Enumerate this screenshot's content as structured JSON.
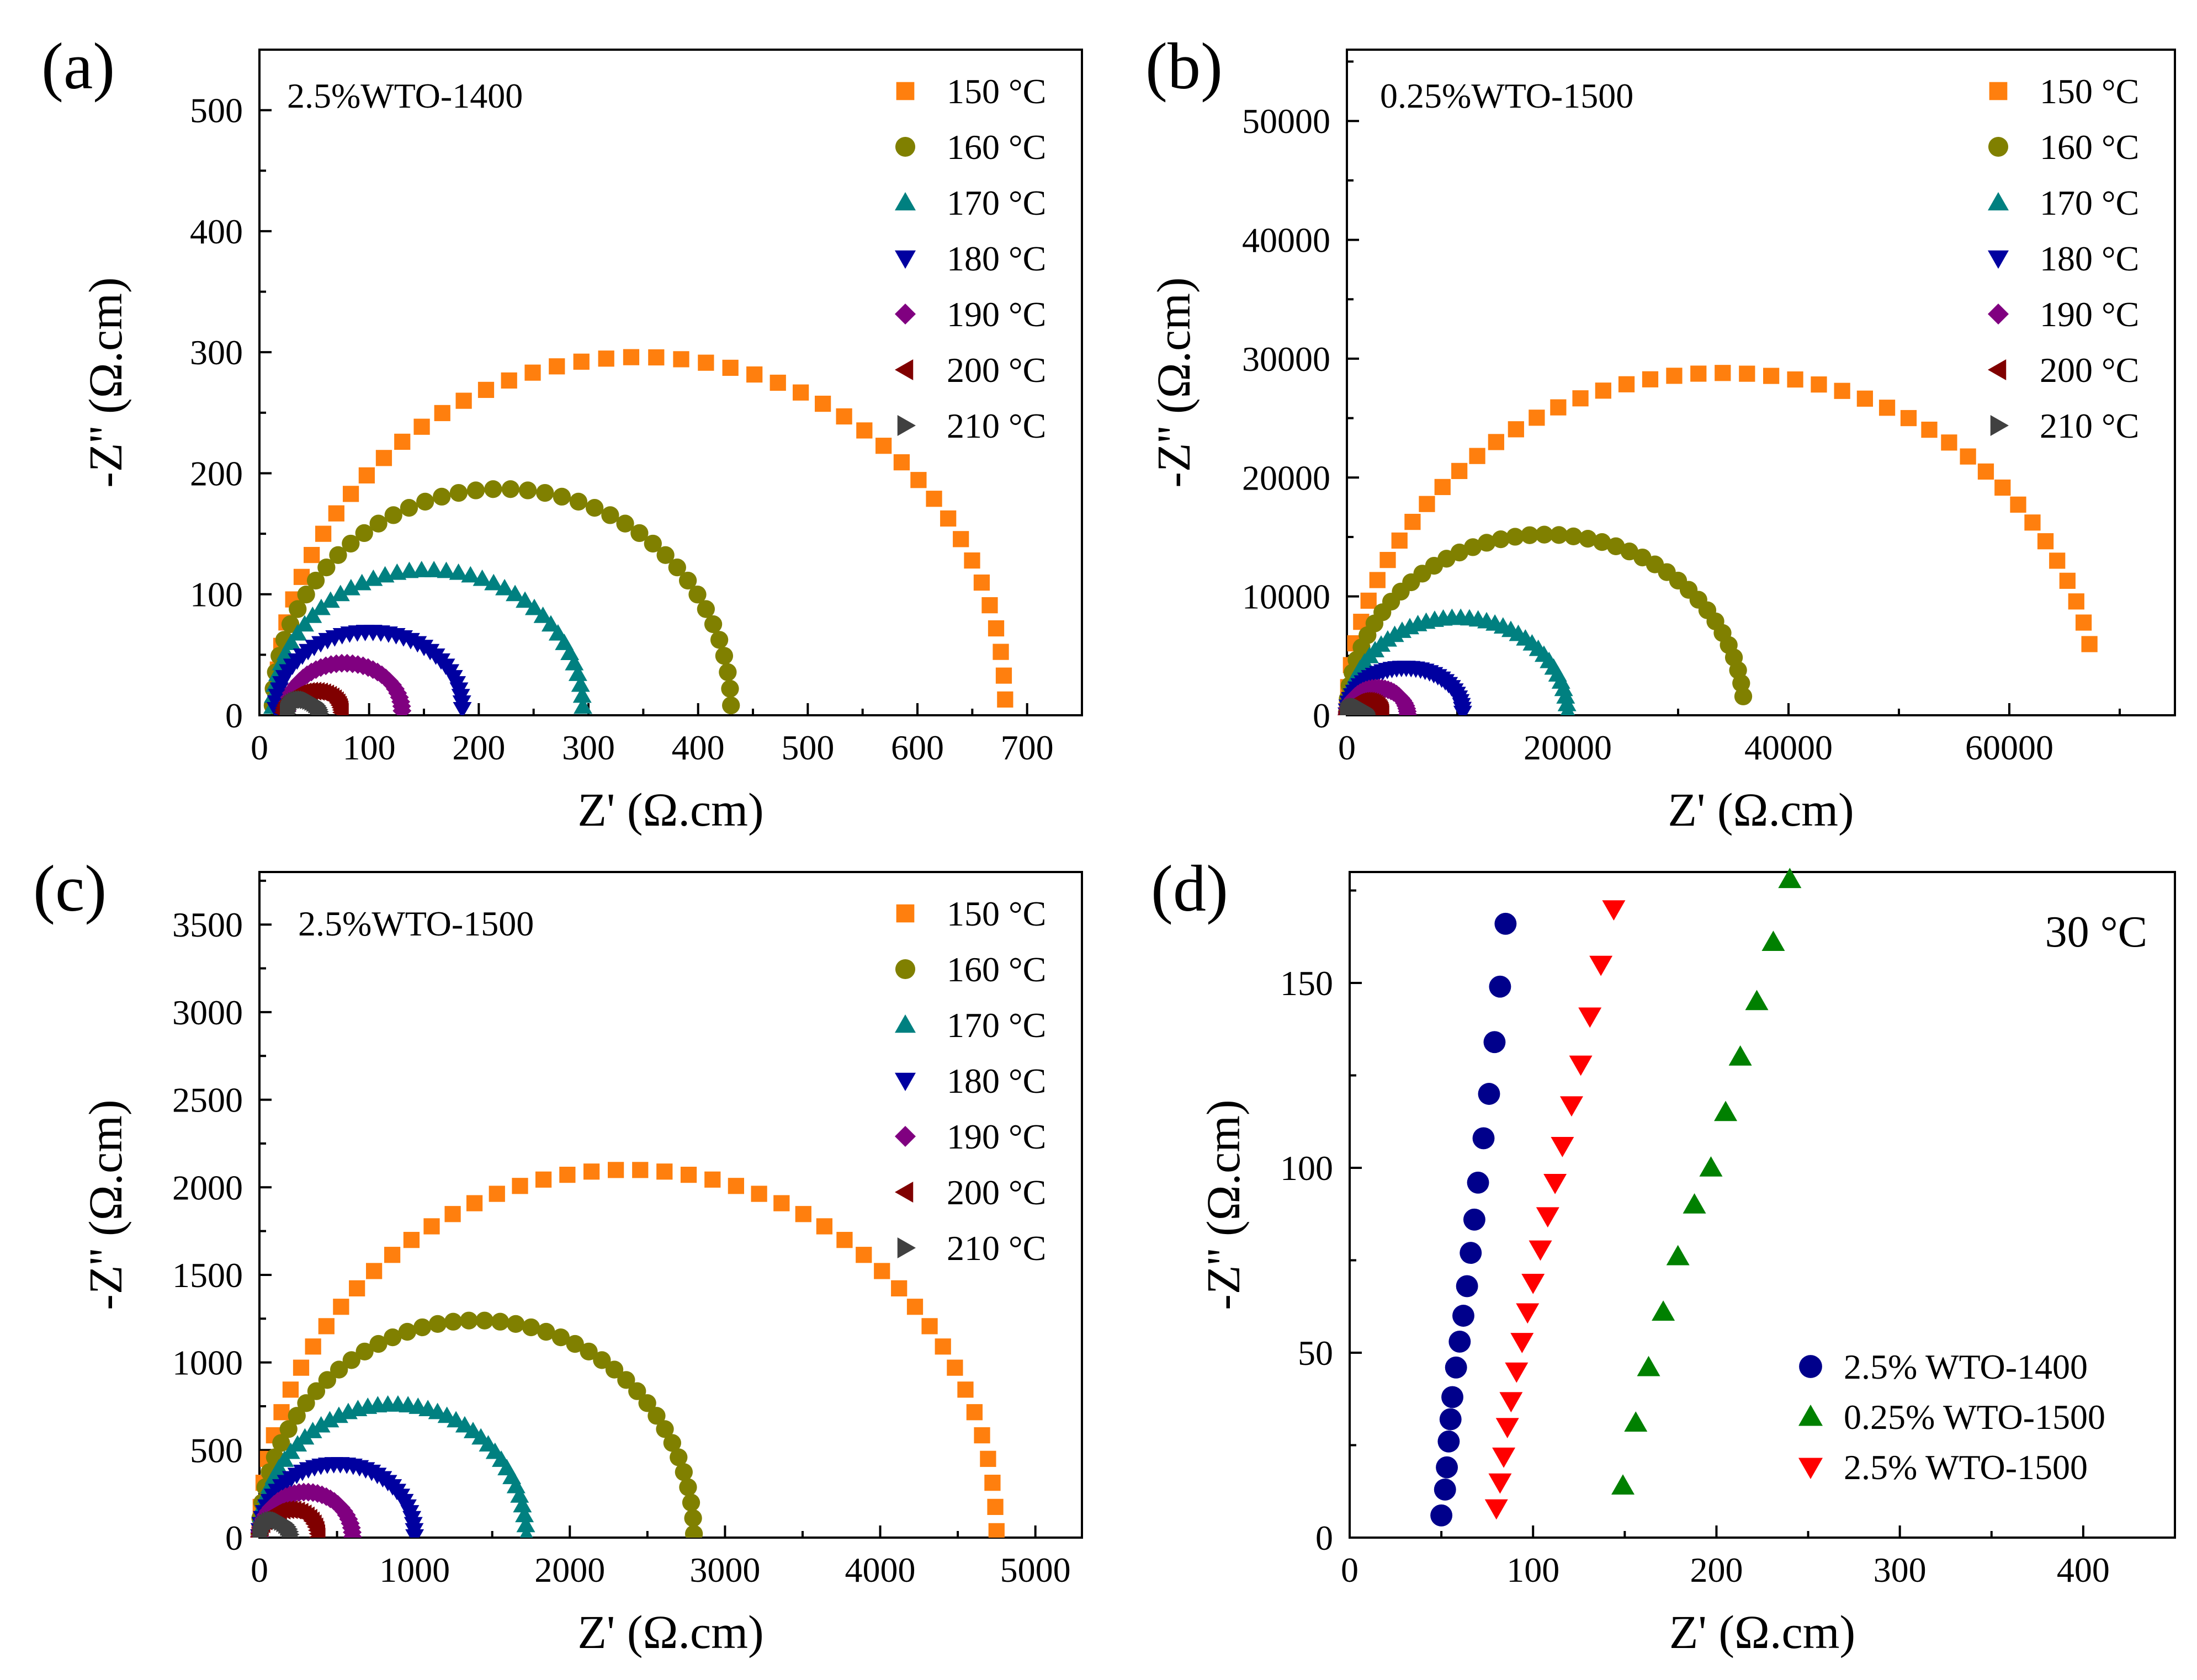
{
  "chart_data": [
    {
      "type": "scatter",
      "panel_label": "(a)",
      "sample": "2.5%WTO-1400",
      "xlabel": "Z' (Ω.cm)",
      "ylabel": "-Z'' (Ω.cm)",
      "xlim": [
        0,
        750
      ],
      "ylim": [
        0,
        550
      ],
      "xticks": [
        0,
        100,
        200,
        300,
        400,
        500,
        600,
        700
      ],
      "yticks": [
        0,
        100,
        200,
        300,
        400,
        500
      ],
      "legend_position": "top-right",
      "series": [
        {
          "name": "150 °C",
          "color": "#ff7f0e",
          "marker": "square",
          "arc": {
            "start": 15,
            "end": 680,
            "peak": 288,
            "dip": 8,
            "start_deg": 178,
            "end_deg": 1,
            "n": 46
          }
        },
        {
          "name": "160 °C",
          "color": "#808000",
          "marker": "circle",
          "arc": {
            "start": 12,
            "end": 430,
            "peak": 182,
            "dip": 5,
            "start_deg": 179,
            "end_deg": 1,
            "n": 42
          }
        },
        {
          "name": "170 °C",
          "color": "#008080",
          "marker": "triangle-up",
          "arc": {
            "start": 12,
            "end": 295,
            "peak": 115,
            "dip": 5,
            "start_deg": 179,
            "end_deg": 1,
            "n": 40
          }
        },
        {
          "name": "180 °C",
          "color": "#0000a0",
          "marker": "triangle-down",
          "arc": {
            "start": 15,
            "end": 185,
            "peak": 65,
            "dip": 4,
            "start_deg": 179,
            "end_deg": 1,
            "n": 38
          }
        },
        {
          "name": "190 °C",
          "color": "#800080",
          "marker": "diamond",
          "arc": {
            "start": 25,
            "end": 130,
            "peak": 40,
            "dip": 3,
            "start_deg": 179,
            "end_deg": 1,
            "n": 34
          }
        },
        {
          "name": "200 °C",
          "color": "#800000",
          "marker": "triangle-left",
          "arc": {
            "start": 22,
            "end": 75,
            "peak": 18,
            "dip": 2,
            "start_deg": 179,
            "end_deg": 1,
            "n": 28
          }
        },
        {
          "name": "210 °C",
          "color": "#404040",
          "marker": "triangle-right",
          "arc": {
            "start": 25,
            "end": 55,
            "peak": 12,
            "dip": 1,
            "start_deg": 179,
            "end_deg": 1,
            "n": 22
          }
        }
      ]
    },
    {
      "type": "scatter",
      "panel_label": "(b)",
      "sample": "0.25%WTO-1500",
      "xlabel": "Z' (Ω.cm)",
      "ylabel": "-Z'' (Ω.cm)",
      "xlim": [
        0,
        75000
      ],
      "ylim": [
        0,
        56000
      ],
      "xticks": [
        0,
        20000,
        40000,
        60000
      ],
      "yticks": [
        0,
        10000,
        20000,
        30000,
        40000,
        50000
      ],
      "legend_position": "top-right",
      "series": [
        {
          "name": "150 °C",
          "color": "#ff7f0e",
          "marker": "square",
          "arc": {
            "start": 0,
            "end": 68000,
            "peak": 28800,
            "dip": 0,
            "start_deg": 179,
            "end_deg": 12,
            "n": 46
          }
        },
        {
          "name": "160 °C",
          "color": "#808000",
          "marker": "circle",
          "arc": {
            "start": 0,
            "end": 36000,
            "peak": 15200,
            "dip": 0,
            "start_deg": 179,
            "end_deg": 6,
            "n": 42
          }
        },
        {
          "name": "170 °C",
          "color": "#008080",
          "marker": "triangle-up",
          "arc": {
            "start": 0,
            "end": 20000,
            "peak": 8200,
            "dip": 0,
            "start_deg": 179,
            "end_deg": 2,
            "n": 40
          }
        },
        {
          "name": "180 °C",
          "color": "#0000a0",
          "marker": "triangle-down",
          "arc": {
            "start": 0,
            "end": 10500,
            "peak": 4000,
            "dip": 0,
            "start_deg": 179,
            "end_deg": 3,
            "n": 38
          }
        },
        {
          "name": "190 °C",
          "color": "#800080",
          "marker": "diamond",
          "arc": {
            "start": 0,
            "end": 5500,
            "peak": 2300,
            "dip": 0,
            "start_deg": 179,
            "end_deg": 2,
            "n": 30
          }
        },
        {
          "name": "200 °C",
          "color": "#800000",
          "marker": "triangle-left",
          "arc": {
            "start": 0,
            "end": 3200,
            "peak": 1200,
            "dip": 0,
            "start_deg": 179,
            "end_deg": 2,
            "n": 26
          }
        },
        {
          "name": "210 °C",
          "color": "#404040",
          "marker": "triangle-right",
          "arc": {
            "start": 0,
            "end": 1800,
            "peak": 700,
            "dip": 0,
            "start_deg": 179,
            "end_deg": 2,
            "n": 22
          }
        }
      ]
    },
    {
      "type": "scatter",
      "panel_label": "(c)",
      "sample": "2.5%WTO-1500",
      "xlabel": "Z' (Ω.cm)",
      "ylabel": "-Z'' (Ω.cm)",
      "xlim": [
        0,
        5300
      ],
      "ylim": [
        0,
        3800
      ],
      "xticks": [
        0,
        1000,
        2000,
        3000,
        4000,
        5000
      ],
      "yticks": [
        0,
        500,
        1000,
        1500,
        2000,
        2500,
        3000,
        3500
      ],
      "legend_position": "top-right",
      "series": [
        {
          "name": "150 °C",
          "color": "#ff7f0e",
          "marker": "square",
          "arc": {
            "start": 0,
            "end": 4750,
            "peak": 2100,
            "dip": 0,
            "start_deg": 179,
            "end_deg": 1,
            "n": 48
          }
        },
        {
          "name": "160 °C",
          "color": "#808000",
          "marker": "circle",
          "arc": {
            "start": 0,
            "end": 2800,
            "peak": 1240,
            "dip": 0,
            "start_deg": 179,
            "end_deg": 1,
            "n": 44
          }
        },
        {
          "name": "170 °C",
          "color": "#008080",
          "marker": "triangle-up",
          "arc": {
            "start": 0,
            "end": 1720,
            "peak": 760,
            "dip": 0,
            "start_deg": 179,
            "end_deg": 1,
            "n": 42
          }
        },
        {
          "name": "180 °C",
          "color": "#0000a0",
          "marker": "triangle-down",
          "arc": {
            "start": 0,
            "end": 1000,
            "peak": 420,
            "dip": 0,
            "start_deg": 179,
            "end_deg": 1,
            "n": 38
          }
        },
        {
          "name": "190 °C",
          "color": "#800080",
          "marker": "diamond",
          "arc": {
            "start": 0,
            "end": 600,
            "peak": 260,
            "dip": 0,
            "start_deg": 179,
            "end_deg": 1,
            "n": 32
          }
        },
        {
          "name": "200 °C",
          "color": "#800000",
          "marker": "triangle-left",
          "arc": {
            "start": 0,
            "end": 380,
            "peak": 160,
            "dip": 0,
            "start_deg": 179,
            "end_deg": 1,
            "n": 26
          }
        },
        {
          "name": "210 °C",
          "color": "#404040",
          "marker": "triangle-right",
          "arc": {
            "start": 0,
            "end": 200,
            "peak": 100,
            "dip": 0,
            "start_deg": 179,
            "end_deg": 1,
            "n": 20
          }
        }
      ]
    },
    {
      "type": "scatter",
      "panel_label": "(d)",
      "temperature_label": "30 °C",
      "xlabel": "Z' (Ω.cm)",
      "ylabel": "-Z'' (Ω.cm)",
      "xlim": [
        0,
        450
      ],
      "ylim": [
        0,
        180
      ],
      "xticks": [
        0,
        100,
        200,
        300,
        400
      ],
      "yticks": [
        0,
        50,
        100,
        150
      ],
      "legend_position": "bottom-right",
      "series": [
        {
          "name": "2.5% WTO-1400",
          "color": "#00008b",
          "marker": "circle",
          "points": [
            [
              50,
              6
            ],
            [
              52,
              13
            ],
            [
              53,
              19
            ],
            [
              54,
              26
            ],
            [
              55,
              32
            ],
            [
              56,
              38
            ],
            [
              58,
              46
            ],
            [
              60,
              53
            ],
            [
              62,
              60
            ],
            [
              64,
              68
            ],
            [
              66,
              77
            ],
            [
              68,
              86
            ],
            [
              70,
              96
            ],
            [
              73,
              108
            ],
            [
              76,
              120
            ],
            [
              79,
              134
            ],
            [
              82,
              149
            ],
            [
              85,
              166
            ]
          ]
        },
        {
          "name": "0.25% WTO-1500",
          "color": "#008000",
          "marker": "triangle-up",
          "points": [
            [
              149,
              14
            ],
            [
              156,
              31
            ],
            [
              163,
              46
            ],
            [
              171,
              61
            ],
            [
              179,
              76
            ],
            [
              188,
              90
            ],
            [
              197,
              100
            ],
            [
              205,
              115
            ],
            [
              213,
              130
            ],
            [
              222,
              145
            ],
            [
              231,
              161
            ],
            [
              240,
              178
            ]
          ]
        },
        {
          "name": "2.5% WTO-1500",
          "color": "#ff0000",
          "marker": "triangle-down",
          "points": [
            [
              80,
              8
            ],
            [
              82,
              15
            ],
            [
              84,
              22
            ],
            [
              86,
              30
            ],
            [
              88,
              37
            ],
            [
              91,
              45
            ],
            [
              94,
              53
            ],
            [
              97,
              61
            ],
            [
              100,
              69
            ],
            [
              104,
              78
            ],
            [
              108,
              87
            ],
            [
              112,
              96
            ],
            [
              116,
              106
            ],
            [
              121,
              117
            ],
            [
              126,
              128
            ],
            [
              131,
              141
            ],
            [
              137,
              155
            ],
            [
              144,
              170
            ]
          ]
        }
      ]
    }
  ]
}
